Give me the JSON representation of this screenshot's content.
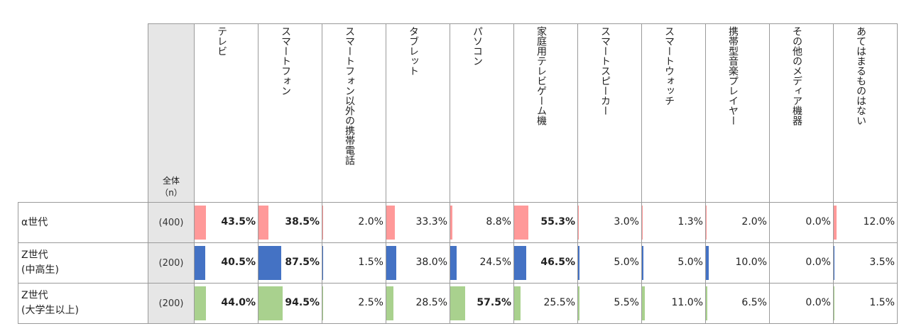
{
  "chart_data": {
    "type": "table",
    "header_total": "全体",
    "header_n": "（n）",
    "columns": [
      "テレビ",
      "スマートフォン",
      "スマートフォン以外の携帯電話",
      "タブレット",
      "パソコン",
      "家庭用テレビゲーム機",
      "スマートスピーカー",
      "スマートウォッチ",
      "携帯型音楽プレイヤー",
      "その他のメディア機器",
      "あてはまるものはない"
    ],
    "rows": [
      {
        "label": [
          "α世代"
        ],
        "n": "(400)",
        "color": "#ff9999",
        "values": [
          43.5,
          38.5,
          2.0,
          33.3,
          8.8,
          55.3,
          3.0,
          1.3,
          2.0,
          0.0,
          12.0
        ],
        "labels": [
          "43.5%",
          "38.5%",
          "2.0%",
          "33.3%",
          "8.8%",
          "55.3%",
          "3.0%",
          "1.3%",
          "2.0%",
          "0.0%",
          "12.0%"
        ],
        "bold": [
          true,
          true,
          false,
          false,
          false,
          true,
          false,
          false,
          false,
          false,
          false
        ]
      },
      {
        "label": [
          "Z世代",
          "(中高生)"
        ],
        "n": "(200)",
        "color": "#4472c4",
        "values": [
          40.5,
          87.5,
          1.5,
          38.0,
          24.5,
          46.5,
          5.0,
          5.0,
          10.0,
          0.0,
          3.5
        ],
        "labels": [
          "40.5%",
          "87.5%",
          "1.5%",
          "38.0%",
          "24.5%",
          "46.5%",
          "5.0%",
          "5.0%",
          "10.0%",
          "0.0%",
          "3.5%"
        ],
        "bold": [
          true,
          true,
          false,
          false,
          false,
          true,
          false,
          false,
          false,
          false,
          false
        ]
      },
      {
        "label": [
          "Z世代",
          "(大学生以上)"
        ],
        "n": "(200)",
        "color": "#a9d18e",
        "values": [
          44.0,
          94.5,
          2.5,
          28.5,
          57.5,
          25.5,
          5.5,
          11.0,
          6.5,
          0.0,
          1.5
        ],
        "labels": [
          "44.0%",
          "94.5%",
          "2.5%",
          "28.5%",
          "57.5%",
          "25.5%",
          "5.5%",
          "11.0%",
          "6.5%",
          "0.0%",
          "1.5%"
        ],
        "bold": [
          true,
          true,
          false,
          false,
          true,
          false,
          false,
          false,
          false,
          false,
          false
        ]
      }
    ],
    "bar_scale_max": 100
  }
}
